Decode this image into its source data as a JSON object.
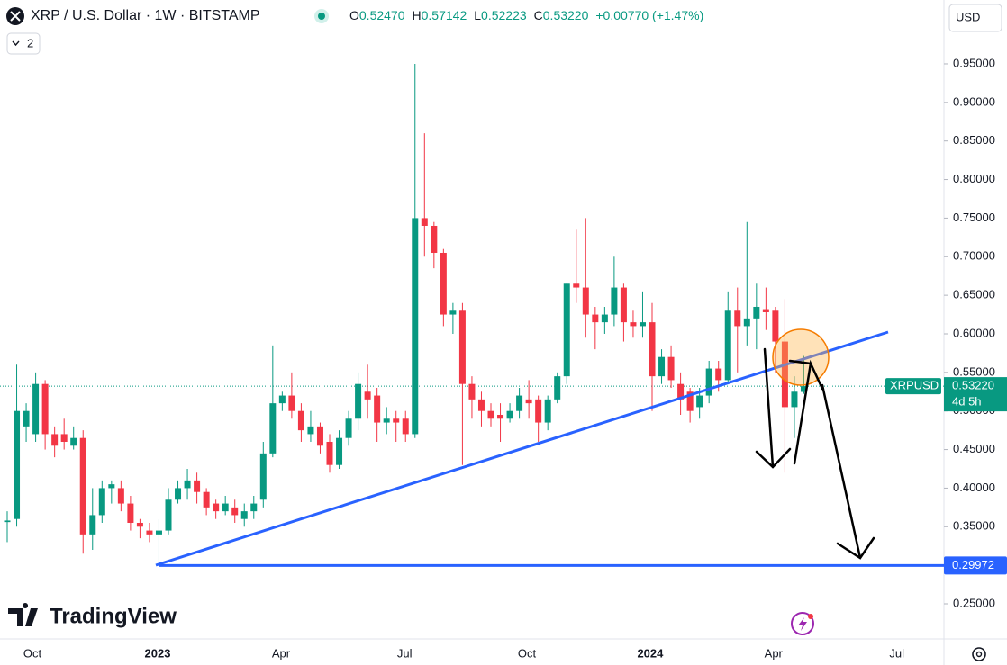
{
  "header": {
    "symbol": "XRP / U.S. Dollar · 1W · BITSTAMP",
    "ohlc": [
      {
        "key": "O",
        "value": "0.52470"
      },
      {
        "key": "H",
        "value": "0.57142"
      },
      {
        "key": "L",
        "value": "0.52223"
      },
      {
        "key": "C",
        "value": "0.53220"
      }
    ],
    "change": "+0.00770 (+1.47%)",
    "currency": "USD",
    "indicator_count": "2"
  },
  "chart_data": {
    "type": "candlestick",
    "categories": [
      null,
      null,
      null,
      null,
      null,
      null,
      null,
      null,
      null,
      null,
      null,
      null,
      null,
      null,
      null,
      null,
      null,
      null,
      null,
      null,
      null,
      null,
      null,
      null,
      null,
      null,
      null,
      null,
      null,
      null,
      null,
      null,
      null,
      null,
      null,
      null,
      null,
      null,
      null,
      null,
      null,
      null,
      null,
      null,
      null,
      null,
      null,
      null,
      null,
      null,
      null,
      null,
      null,
      null,
      null,
      null,
      null,
      null,
      null,
      null,
      null,
      null,
      null,
      null,
      null,
      null,
      null,
      null,
      null,
      null,
      null,
      null,
      null,
      null,
      null,
      null,
      null,
      null,
      null,
      null,
      null,
      null,
      null,
      null,
      null
    ],
    "series": [
      {
        "name": "XRPUSD",
        "up_color": "#089981",
        "down_color": "#f23645",
        "open": [
          0.356,
          0.36,
          0.48,
          0.47,
          0.535,
          0.47,
          0.47,
          0.455,
          0.465,
          0.34,
          0.365,
          0.4,
          0.4,
          0.38,
          0.355,
          0.345,
          0.34,
          0.345,
          0.385,
          0.4,
          0.41,
          0.395,
          0.38,
          0.37,
          0.375,
          0.36,
          0.37,
          0.385,
          0.445,
          0.51,
          0.52,
          0.5,
          0.47,
          0.48,
          0.46,
          0.43,
          0.465,
          0.49,
          0.525,
          0.52,
          0.485,
          0.49,
          0.49,
          0.47,
          0.75,
          0.74,
          0.705,
          0.625,
          0.63,
          0.535,
          0.515,
          0.5,
          0.495,
          0.49,
          0.5,
          0.515,
          0.515,
          0.485,
          0.515,
          0.545,
          0.665,
          0.66,
          0.625,
          0.615,
          0.625,
          0.66,
          0.615,
          0.61,
          0.615,
          0.545,
          0.57,
          0.535,
          0.525,
          0.505,
          0.52,
          0.555,
          0.54,
          0.63,
          0.61,
          0.62,
          0.632,
          0.63,
          0.59,
          0.505,
          0.5247
        ],
        "high": [
          0.37,
          0.56,
          0.51,
          0.55,
          0.54,
          0.48,
          0.49,
          0.48,
          0.475,
          0.4,
          0.41,
          0.41,
          0.41,
          0.39,
          0.36,
          0.355,
          0.36,
          0.4,
          0.41,
          0.425,
          0.42,
          0.4,
          0.385,
          0.39,
          0.385,
          0.38,
          0.39,
          0.46,
          0.585,
          0.525,
          0.55,
          0.51,
          0.5,
          0.485,
          0.47,
          0.475,
          0.5,
          0.55,
          0.56,
          0.53,
          0.505,
          0.5,
          0.5,
          0.95,
          0.86,
          0.745,
          0.71,
          0.64,
          0.64,
          0.545,
          0.525,
          0.51,
          0.51,
          0.51,
          0.53,
          0.54,
          0.52,
          0.52,
          0.55,
          0.665,
          0.735,
          0.75,
          0.635,
          0.635,
          0.7,
          0.665,
          0.63,
          0.655,
          0.64,
          0.58,
          0.585,
          0.55,
          0.53,
          0.53,
          0.565,
          0.565,
          0.655,
          0.66,
          0.745,
          0.665,
          0.66,
          0.635,
          0.645,
          0.545,
          0.57142
        ],
        "low": [
          0.33,
          0.35,
          0.46,
          0.46,
          0.45,
          0.44,
          0.45,
          0.45,
          0.315,
          0.32,
          0.355,
          0.38,
          0.37,
          0.345,
          0.335,
          0.33,
          0.29972,
          0.34,
          0.38,
          0.385,
          0.38,
          0.365,
          0.36,
          0.365,
          0.355,
          0.35,
          0.36,
          0.375,
          0.44,
          0.5,
          0.49,
          0.46,
          0.46,
          0.445,
          0.42,
          0.425,
          0.455,
          0.475,
          0.49,
          0.46,
          0.47,
          0.46,
          0.46,
          0.465,
          0.7,
          0.685,
          0.61,
          0.6,
          0.43,
          0.49,
          0.48,
          0.48,
          0.46,
          0.485,
          0.49,
          0.49,
          0.46,
          0.475,
          0.51,
          0.535,
          0.64,
          0.595,
          0.58,
          0.6,
          0.61,
          0.59,
          0.595,
          0.595,
          0.5,
          0.535,
          0.53,
          0.495,
          0.485,
          0.49,
          0.51,
          0.525,
          0.535,
          0.55,
          0.585,
          0.58,
          0.605,
          0.55,
          0.42,
          0.465,
          0.52223
        ],
        "close": [
          0.358,
          0.5,
          0.5,
          0.535,
          0.47,
          0.455,
          0.46,
          0.465,
          0.34,
          0.365,
          0.4,
          0.405,
          0.38,
          0.355,
          0.35,
          0.34,
          0.345,
          0.385,
          0.4,
          0.41,
          0.395,
          0.375,
          0.37,
          0.38,
          0.365,
          0.37,
          0.38,
          0.445,
          0.51,
          0.52,
          0.5,
          0.475,
          0.48,
          0.455,
          0.43,
          0.465,
          0.49,
          0.535,
          0.515,
          0.485,
          0.49,
          0.485,
          0.47,
          0.75,
          0.74,
          0.705,
          0.625,
          0.63,
          0.535,
          0.515,
          0.5,
          0.49,
          0.49,
          0.5,
          0.52,
          0.51,
          0.485,
          0.515,
          0.545,
          0.665,
          0.66,
          0.625,
          0.615,
          0.625,
          0.66,
          0.615,
          0.61,
          0.615,
          0.545,
          0.57,
          0.54,
          0.515,
          0.5,
          0.52,
          0.555,
          0.54,
          0.63,
          0.61,
          0.62,
          0.635,
          0.628,
          0.59,
          0.505,
          0.525,
          0.5322
        ]
      }
    ],
    "xlim": [
      -0.76,
      98.77
    ],
    "xticks": [
      {
        "value": 2.66,
        "label": "Oct"
      },
      {
        "value": 15.86,
        "label": "2023"
      },
      {
        "value": 28.87,
        "label": "Apr"
      },
      {
        "value": 41.9,
        "label": "Jul"
      },
      {
        "value": 54.8,
        "label": "Oct"
      },
      {
        "value": 67.8,
        "label": "2024"
      },
      {
        "value": 80.8,
        "label": "Apr"
      },
      {
        "value": 93.8,
        "label": "Jul"
      }
    ],
    "ylim": [
      0.2045,
      1.0328
    ],
    "yticks": [
      {
        "value": 0.25,
        "label": "0.25000"
      },
      {
        "value": 0.3,
        "label": "0.30000"
      },
      {
        "value": 0.35,
        "label": "0.35000"
      },
      {
        "value": 0.4,
        "label": "0.40000"
      },
      {
        "value": 0.45,
        "label": "0.45000"
      },
      {
        "value": 0.5,
        "label": "0.50000"
      },
      {
        "value": 0.55,
        "label": "0.55000"
      },
      {
        "value": 0.6,
        "label": "0.60000"
      },
      {
        "value": 0.65,
        "label": "0.65000"
      },
      {
        "value": 0.7,
        "label": "0.70000"
      },
      {
        "value": 0.75,
        "label": "0.75000"
      },
      {
        "value": 0.8,
        "label": "0.80000"
      },
      {
        "value": 0.85,
        "label": "0.85000"
      },
      {
        "value": 0.9,
        "label": "0.90000"
      },
      {
        "value": 0.95,
        "label": "0.95000"
      }
    ],
    "grid": false,
    "last_price": {
      "value": 0.5322,
      "label": "0.53220",
      "countdown": "4d 5h",
      "color": "#089981"
    },
    "level": {
      "value": 0.29972,
      "label": "0.29972",
      "color": "#2962ff"
    }
  },
  "branding": "TradingView"
}
